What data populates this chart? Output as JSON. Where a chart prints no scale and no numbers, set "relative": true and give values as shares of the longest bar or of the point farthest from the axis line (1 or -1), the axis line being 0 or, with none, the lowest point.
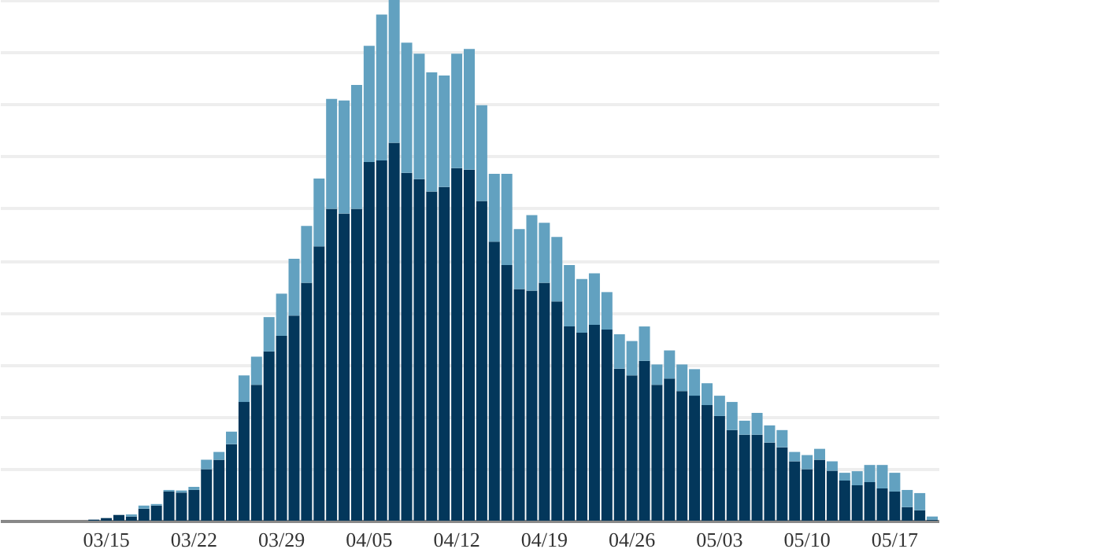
{
  "chart_data": {
    "type": "bar",
    "stacked": true,
    "relative": true,
    "grid": "y",
    "categories": [
      null,
      null,
      null,
      null,
      null,
      null,
      null,
      null,
      "03/15",
      null,
      null,
      null,
      null,
      null,
      null,
      "03/22",
      null,
      null,
      null,
      null,
      null,
      null,
      "03/29",
      null,
      null,
      null,
      null,
      null,
      null,
      "04/05",
      null,
      null,
      null,
      null,
      null,
      null,
      "04/12",
      null,
      null,
      null,
      null,
      null,
      null,
      "04/19",
      null,
      null,
      null,
      null,
      null,
      null,
      "04/26",
      null,
      null,
      null,
      null,
      null,
      null,
      "05/03",
      null,
      null,
      null,
      null,
      null,
      null,
      "05/10",
      null,
      null,
      null,
      null,
      null,
      null,
      "05/17",
      null,
      null,
      null
    ],
    "series": [
      {
        "color": "#03375b",
        "values": [
          0,
          0,
          0,
          0,
          0,
          0,
          0,
          0.002,
          0.005,
          0.011,
          0.008,
          0.023,
          0.029,
          0.056,
          0.054,
          0.059,
          0.099,
          0.117,
          0.147,
          0.228,
          0.261,
          0.325,
          0.355,
          0.394,
          0.457,
          0.527,
          0.599,
          0.59,
          0.599,
          0.689,
          0.692,
          0.726,
          0.668,
          0.656,
          0.632,
          0.641,
          0.677,
          0.674,
          0.614,
          0.536,
          0.491,
          0.445,
          0.442,
          0.457,
          0.421,
          0.373,
          0.361,
          0.376,
          0.367,
          0.292,
          0.279,
          0.307,
          0.261,
          0.273,
          0.249,
          0.24,
          0.222,
          0.201,
          0.174,
          0.165,
          0.165,
          0.15,
          0.141,
          0.114,
          0.099,
          0.117,
          0.096,
          0.077,
          0.068,
          0.074,
          0.062,
          0.056,
          0.026,
          0.02,
          0.002
        ]
      },
      {
        "color": "#62a1c0",
        "values": [
          0,
          0,
          0,
          0,
          0,
          0,
          0,
          0,
          0,
          0,
          0.004,
          0.006,
          0.003,
          0.003,
          0.004,
          0.006,
          0.018,
          0.015,
          0.024,
          0.051,
          0.054,
          0.066,
          0.081,
          0.109,
          0.109,
          0.13,
          0.211,
          0.217,
          0.238,
          0.223,
          0.28,
          0.274,
          0.25,
          0.241,
          0.229,
          0.214,
          0.22,
          0.232,
          0.184,
          0.13,
          0.175,
          0.115,
          0.145,
          0.115,
          0.124,
          0.118,
          0.103,
          0.099,
          0.072,
          0.066,
          0.066,
          0.066,
          0.039,
          0.054,
          0.051,
          0.051,
          0.042,
          0.039,
          0.054,
          0.027,
          0.042,
          0.033,
          0.033,
          0.018,
          0.027,
          0.021,
          0.018,
          0.015,
          0.027,
          0.033,
          0.045,
          0.036,
          0.033,
          0.033,
          0.006
        ]
      }
    ]
  }
}
